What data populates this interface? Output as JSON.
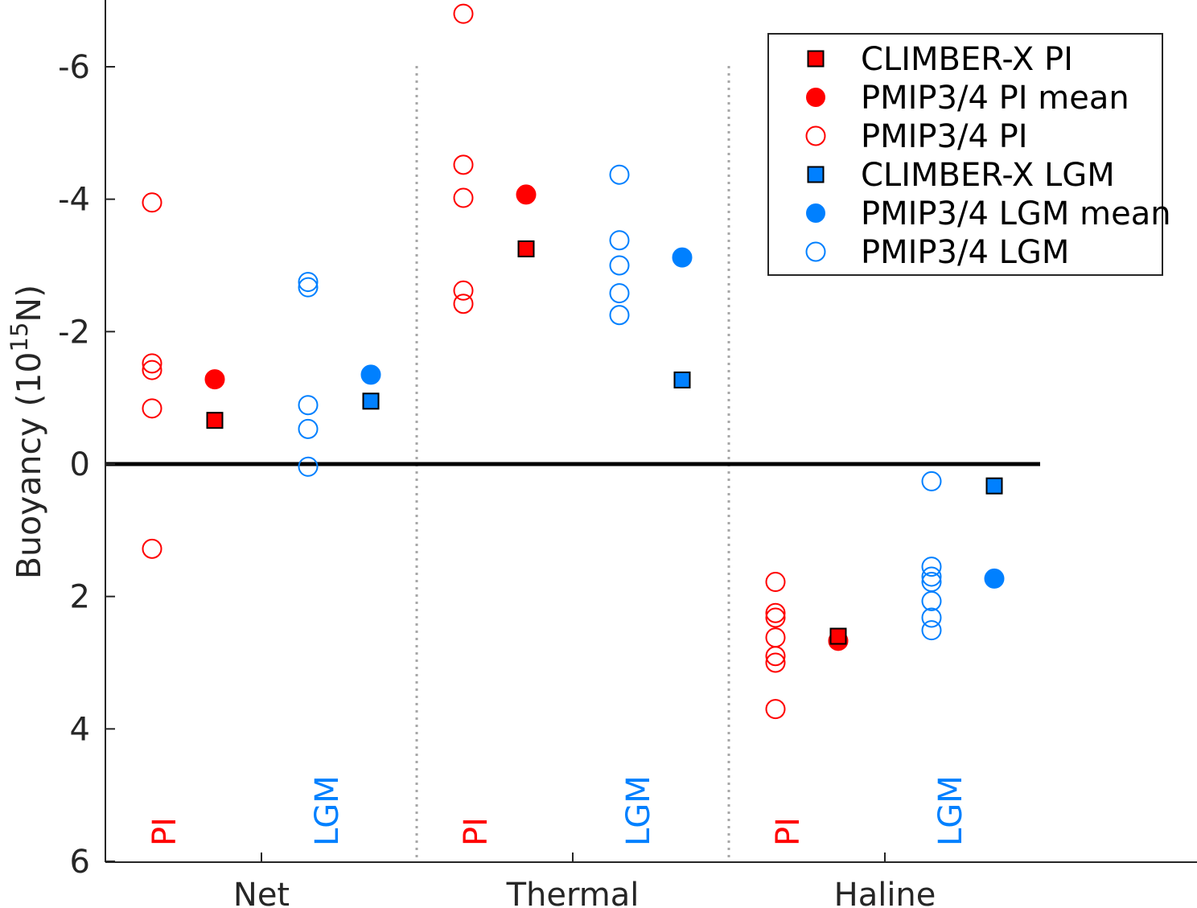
{
  "chart_data": {
    "type": "scatter",
    "title": "",
    "xlabel": "",
    "ylabel": "Buoyancy",
    "ylabel_unit_base": "(10",
    "ylabel_unit_exp": "15",
    "ylabel_unit_tail": "N)",
    "y_reversed": true,
    "ylim": [
      -7,
      6
    ],
    "yticks": [
      -6,
      -4,
      -2,
      0,
      2,
      4,
      6
    ],
    "ytick_labels": [
      "-6",
      "-4",
      "-2",
      "0",
      "2",
      "4",
      "6"
    ],
    "groups": [
      "Net",
      "Thermal",
      "Haline"
    ],
    "subgroup_labels": [
      "PI",
      "LGM"
    ],
    "colors": {
      "pi": "#ff0000",
      "lgm": "#0080ff",
      "zero_line": "#000000",
      "separator": "#a6a6a6"
    },
    "legend_placement": "top-right",
    "legend": [
      {
        "label": "CLIMBER-X PI",
        "marker": "square",
        "color": "#ff0000"
      },
      {
        "label": "PMIP3/4 PI mean",
        "marker": "filled-circle",
        "color": "#ff0000"
      },
      {
        "label": "PMIP3/4 PI",
        "marker": "open-circle",
        "color": "#ff0000"
      },
      {
        "label": "CLIMBER-X LGM",
        "marker": "square",
        "color": "#0080ff"
      },
      {
        "label": "PMIP3/4 LGM mean",
        "marker": "filled-circle",
        "color": "#0080ff"
      },
      {
        "label": "PMIP3/4 LGM",
        "marker": "open-circle",
        "color": "#0080ff"
      }
    ],
    "series": [
      {
        "group": "Net",
        "pi_models": [
          -3.95,
          -1.52,
          -1.42,
          -0.84,
          1.28
        ],
        "pi_mean": -1.28,
        "pi_climber": -0.66,
        "lgm_models": [
          -2.75,
          -2.67,
          -0.89,
          -0.53,
          0.04
        ],
        "lgm_mean": -1.35,
        "lgm_climber": -0.95
      },
      {
        "group": "Thermal",
        "pi_models": [
          -6.8,
          -4.52,
          -4.02,
          -2.62,
          -2.42
        ],
        "pi_mean": -4.07,
        "pi_climber": -3.25,
        "lgm_models": [
          -4.37,
          -3.38,
          -3.0,
          -2.58,
          -2.25
        ],
        "lgm_mean": -3.12,
        "lgm_climber": -1.27
      },
      {
        "group": "Haline",
        "pi_models": [
          1.78,
          2.25,
          2.32,
          2.62,
          2.9,
          3.0,
          3.7
        ],
        "pi_mean": 2.67,
        "pi_climber": 2.6,
        "lgm_models": [
          0.26,
          1.55,
          1.7,
          1.78,
          2.07,
          2.32,
          2.51
        ],
        "lgm_mean": 1.73,
        "lgm_climber": 0.33
      }
    ]
  }
}
